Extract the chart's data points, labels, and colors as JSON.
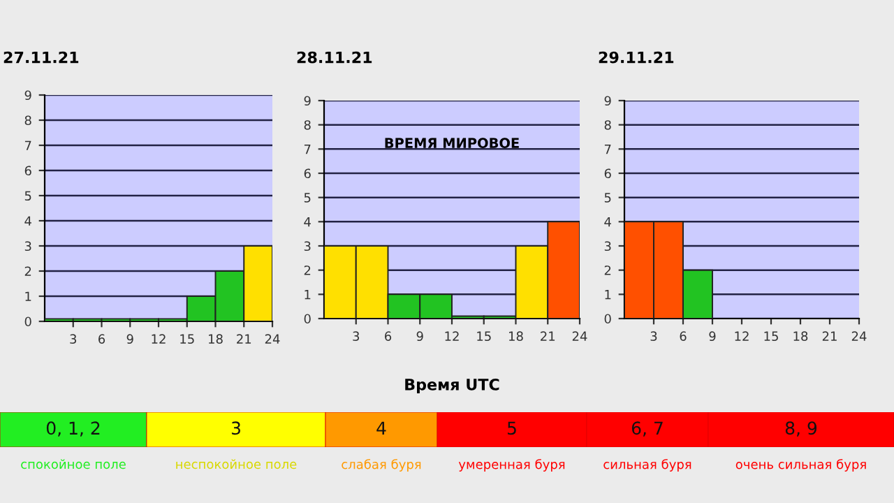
{
  "chart_data": [
    {
      "type": "histogram",
      "title": "27.11.21",
      "bins": [
        0,
        3,
        6,
        9,
        12,
        15,
        18,
        21,
        24
      ],
      "values": [
        0.1,
        0.1,
        0.1,
        0.1,
        0.1,
        1,
        2,
        3
      ],
      "colors": [
        "#22c322",
        "#22c322",
        "#22c322",
        "#22c322",
        "#22c322",
        "#22c322",
        "#22c322",
        "#ffe000"
      ],
      "xlim": [
        0,
        24
      ],
      "xticks": [
        3,
        6,
        9,
        12,
        15,
        18,
        21,
        24
      ],
      "ylim": [
        0,
        9
      ],
      "yticks": [
        0,
        1,
        2,
        3,
        4,
        5,
        6,
        7,
        8,
        9
      ],
      "grid": "y"
    },
    {
      "type": "histogram",
      "title": "28.11.21",
      "xlabel": "Время UTC",
      "annotations": [
        "ВРЕМЯ МИРОВОЕ"
      ],
      "bins": [
        0,
        3,
        6,
        9,
        12,
        15,
        18,
        21,
        24
      ],
      "values": [
        3,
        3,
        1,
        1,
        0.1,
        0.1,
        3,
        4
      ],
      "colors": [
        "#ffe000",
        "#ffe000",
        "#22c322",
        "#22c322",
        "#22c322",
        "#22c322",
        "#ffe000",
        "#ff5000"
      ],
      "xlim": [
        0,
        24
      ],
      "xticks": [
        3,
        6,
        9,
        12,
        15,
        18,
        21,
        24
      ],
      "ylim": [
        0,
        9
      ],
      "yticks": [
        0,
        1,
        2,
        3,
        4,
        5,
        6,
        7,
        8,
        9
      ],
      "grid": "y"
    },
    {
      "type": "histogram",
      "title": "29.11.21",
      "bins": [
        0,
        3,
        6,
        9,
        12,
        15,
        18,
        21,
        24
      ],
      "values": [
        4,
        4,
        2,
        null,
        null,
        null,
        null,
        null
      ],
      "colors": [
        "#ff5000",
        "#ff5000",
        "#22c322",
        "#22c322",
        "#22c322",
        "#22c322",
        "#22c322",
        "#22c322"
      ],
      "xlim": [
        0,
        24
      ],
      "xticks": [
        3,
        6,
        9,
        12,
        15,
        18,
        21,
        24
      ],
      "ylim": [
        0,
        9
      ],
      "yticks": [
        0,
        1,
        2,
        3,
        4,
        5,
        6,
        7,
        8,
        9
      ],
      "grid": "y"
    },
    {
      "type": "other",
      "categories": [
        "0, 1, 2",
        "3",
        "4",
        "5",
        "6, 7",
        "8, 9"
      ],
      "colors": [
        "#22ee22",
        "#ffff00",
        "#ff9900",
        "#ff0000",
        "#ff0000",
        "#ff0000"
      ],
      "annotations": [
        "спокойное поле",
        "неспокойное поле",
        "слабая буря",
        "умеренная буря",
        "сильная буря",
        "очень сильная буря"
      ]
    }
  ]
}
